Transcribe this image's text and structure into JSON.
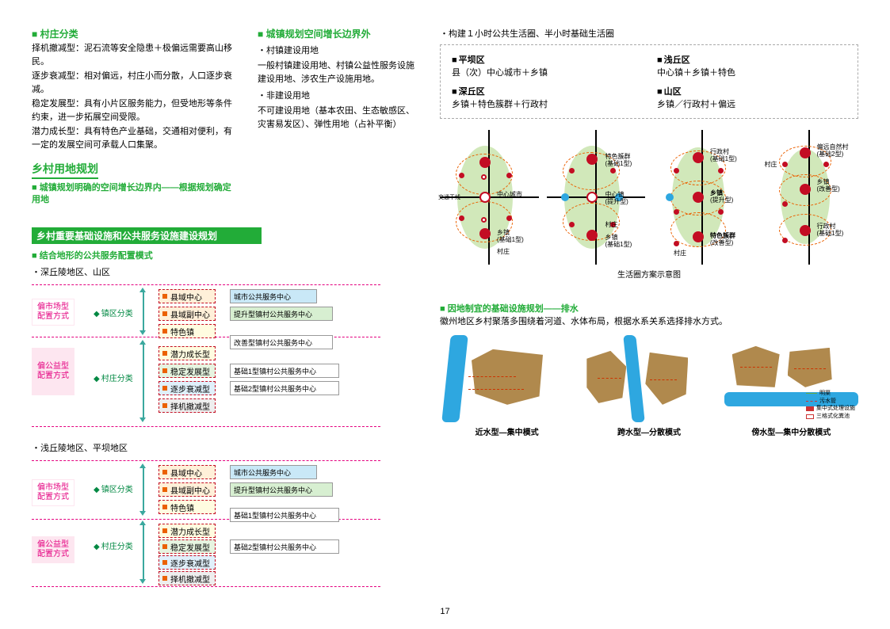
{
  "left": {
    "h1": "村庄分类",
    "p1": "择机撤减型：泥石流等安全隐患＋极偏远需要高山移民。",
    "p2": "逐步衰减型：相对偏远，村庄小而分散，人口逐步衰减。",
    "p3": "稳定发展型：具有小片区服务能力，但受地形等条件约束，进一步拓展空间受限。",
    "p4": "潜力成长型：具有特色产业基础，交通相对便利，有一定的发展空间可承载人口集聚。",
    "sec1": "乡村用地规划",
    "sub1": "城镇规划明确的空间增长边界内——根据规划确定用地",
    "bar1": "乡村重要基础设施和公共服务设施建设规划",
    "mode_h": "结合地形的公共服务配置模式",
    "mode1": "深丘陵地区、山区",
    "mode2": "浅丘陵地区、平坝地区",
    "flow": {
      "pink_market": "偏市场型\n配置方式",
      "pink_public": "偏公益型\n配置方式",
      "cat_town": "镇区分类",
      "cat_village": "村庄分类",
      "lvl1": "县域中心",
      "lvl2": "县域副中心",
      "lvl3": "特色镇",
      "lvl4": "潜力成长型",
      "lvl5": "稳定发展型",
      "lvl6": "逐步衰减型",
      "lvl7": "择机撤减型",
      "svc_city": "城市公共服务中心",
      "svc_up": "提升型镇村公共服务中心",
      "svc_improve": "改善型镇村公共服务中心",
      "svc_b1": "基础1型镇村公共服务中心",
      "svc_b2": "基础2型镇村公共服务中心"
    }
  },
  "mid": {
    "h1": "城镇规划空间增长边界外",
    "b1": "村镇建设用地",
    "p1": "一般村镇建设用地、村镇公益性服务设施建设用地、涉农生产设施用地。",
    "b2": "非建设用地",
    "p2": "不可建设用地（基本农田、生态敏感区、灾害易发区）、弹性用地（占补平衡）"
  },
  "right": {
    "top_bullet": "构建１小时公共生活圈、半小时基础生活圈",
    "life": {
      "a_title": "平坝区",
      "a_body": "县（次）中心城市＋乡镇",
      "b_title": "浅丘区",
      "b_body": "中心镇＋乡镇＋特色",
      "c_title": "深丘区",
      "c_body": "乡镇＋特色簇群＋行政村",
      "d_title": "山区",
      "d_body": "乡镇／行政村＋偏远"
    },
    "lc_labels": {
      "center_city": "中心城市",
      "xiangzhen": "乡镇",
      "village": "村庄",
      "center_town": "中心镇",
      "admin_village": "行政村",
      "cluster": "特色簇群",
      "remote": "偏远自然村",
      "sub_base1": "(基础1型)",
      "sub_base2": "(基础2型)",
      "sub_up": "(提升型)",
      "sub_improve": "(改善型)",
      "caption": "生活圈方案示意图",
      "axis": "交通干线"
    },
    "drain_h": "因地制宜的基础设施规划——排水",
    "drain_p": "徽州地区乡村聚落多围绕着河道、水体布局，根据水系关系选择排水方式。",
    "drain": {
      "a": "近水型—集中模式",
      "b": "跨水型—分散模式",
      "c": "傍水型—集中分散模式",
      "leg1": "明渠",
      "leg2": "污水管",
      "leg3": "集中式处理设施",
      "leg4": "三格式化粪池"
    }
  },
  "page_number": "17",
  "colors": {
    "green": "#22ac38",
    "magenta": "#e4007f",
    "pink_bg": "#fde6f0",
    "red": "#c30d23",
    "orange": "#eb6100",
    "blue": "#2ea7e0",
    "olive": "#9acd65"
  }
}
